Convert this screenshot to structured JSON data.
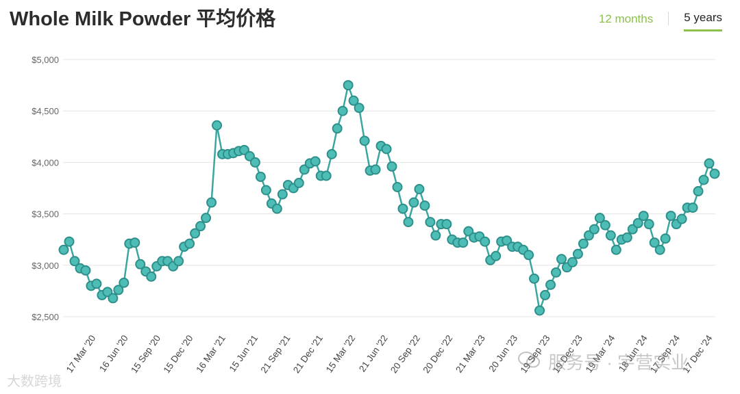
{
  "header": {
    "title": "Whole Milk Powder 平均价格",
    "tabs": [
      {
        "label": "12 months",
        "active": false
      },
      {
        "label": "5 years",
        "active": true
      }
    ]
  },
  "watermarks": {
    "left": "大数跨境",
    "right": "服务号 · 宇营实业"
  },
  "colors": {
    "line": "#3aa6a0",
    "marker_fill": "#4dbdb5",
    "marker_stroke": "#2e8f8a",
    "grid": "#e4e4e4",
    "accent": "#8cc04a"
  },
  "chart_data": {
    "type": "line",
    "title": "Whole Milk Powder 平均价格",
    "xlabel": "",
    "ylabel": "",
    "ylim": [
      2500,
      5000
    ],
    "yticks": [
      2500,
      3000,
      3500,
      4000,
      4500,
      5000
    ],
    "ytick_labels": [
      "$2,500",
      "$3,000",
      "$3,500",
      "$4,000",
      "$4,500",
      "$5,000"
    ],
    "xtick_labels": [
      "17 Mar '20",
      "16 Jun '20",
      "15 Sep '20",
      "15 Dec '20",
      "16 Mar '21",
      "15 Jun '21",
      "21 Sep '21",
      "21 Dec '21",
      "15 Mar '22",
      "21 Jun '22",
      "20 Sep '22",
      "20 Dec '22",
      "21 Mar '23",
      "20 Jun '23",
      "19 Sep '23",
      "19 Dec '23",
      "19 Mar '24",
      "18 Jun '24",
      "17 Sep '24",
      "17 Dec '24"
    ],
    "grid": true,
    "legend": "none",
    "series": [
      {
        "values": [
          3150,
          3230,
          3040,
          2970,
          2950,
          2800,
          2820,
          2710,
          2740,
          2680,
          2760,
          2830,
          3210,
          3220,
          3010,
          2940,
          2890,
          2990,
          3040,
          3040,
          2990,
          3040,
          3180,
          3210,
          3310,
          3380,
          3460,
          3610,
          4360,
          4080,
          4080,
          4090,
          4110,
          4120,
          4060,
          4000,
          3860,
          3730,
          3600,
          3550,
          3690,
          3780,
          3750,
          3800,
          3930,
          3990,
          4010,
          3870,
          3870,
          4080,
          4330,
          4500,
          4750,
          4600,
          4530,
          4210,
          3920,
          3930,
          4160,
          4130,
          3960,
          3760,
          3550,
          3420,
          3610,
          3740,
          3580,
          3420,
          3290,
          3400,
          3400,
          3250,
          3220,
          3220,
          3330,
          3270,
          3280,
          3230,
          3050,
          3090,
          3230,
          3240,
          3180,
          3180,
          3150,
          3100,
          2870,
          2560,
          2710,
          2810,
          2930,
          3060,
          2980,
          3030,
          3110,
          3210,
          3290,
          3350,
          3460,
          3390,
          3290,
          3150,
          3250,
          3270,
          3350,
          3410,
          3480,
          3400,
          3220,
          3150,
          3260,
          3480,
          3400,
          3450,
          3560,
          3560,
          3720,
          3830,
          3990,
          3890
        ]
      }
    ]
  }
}
